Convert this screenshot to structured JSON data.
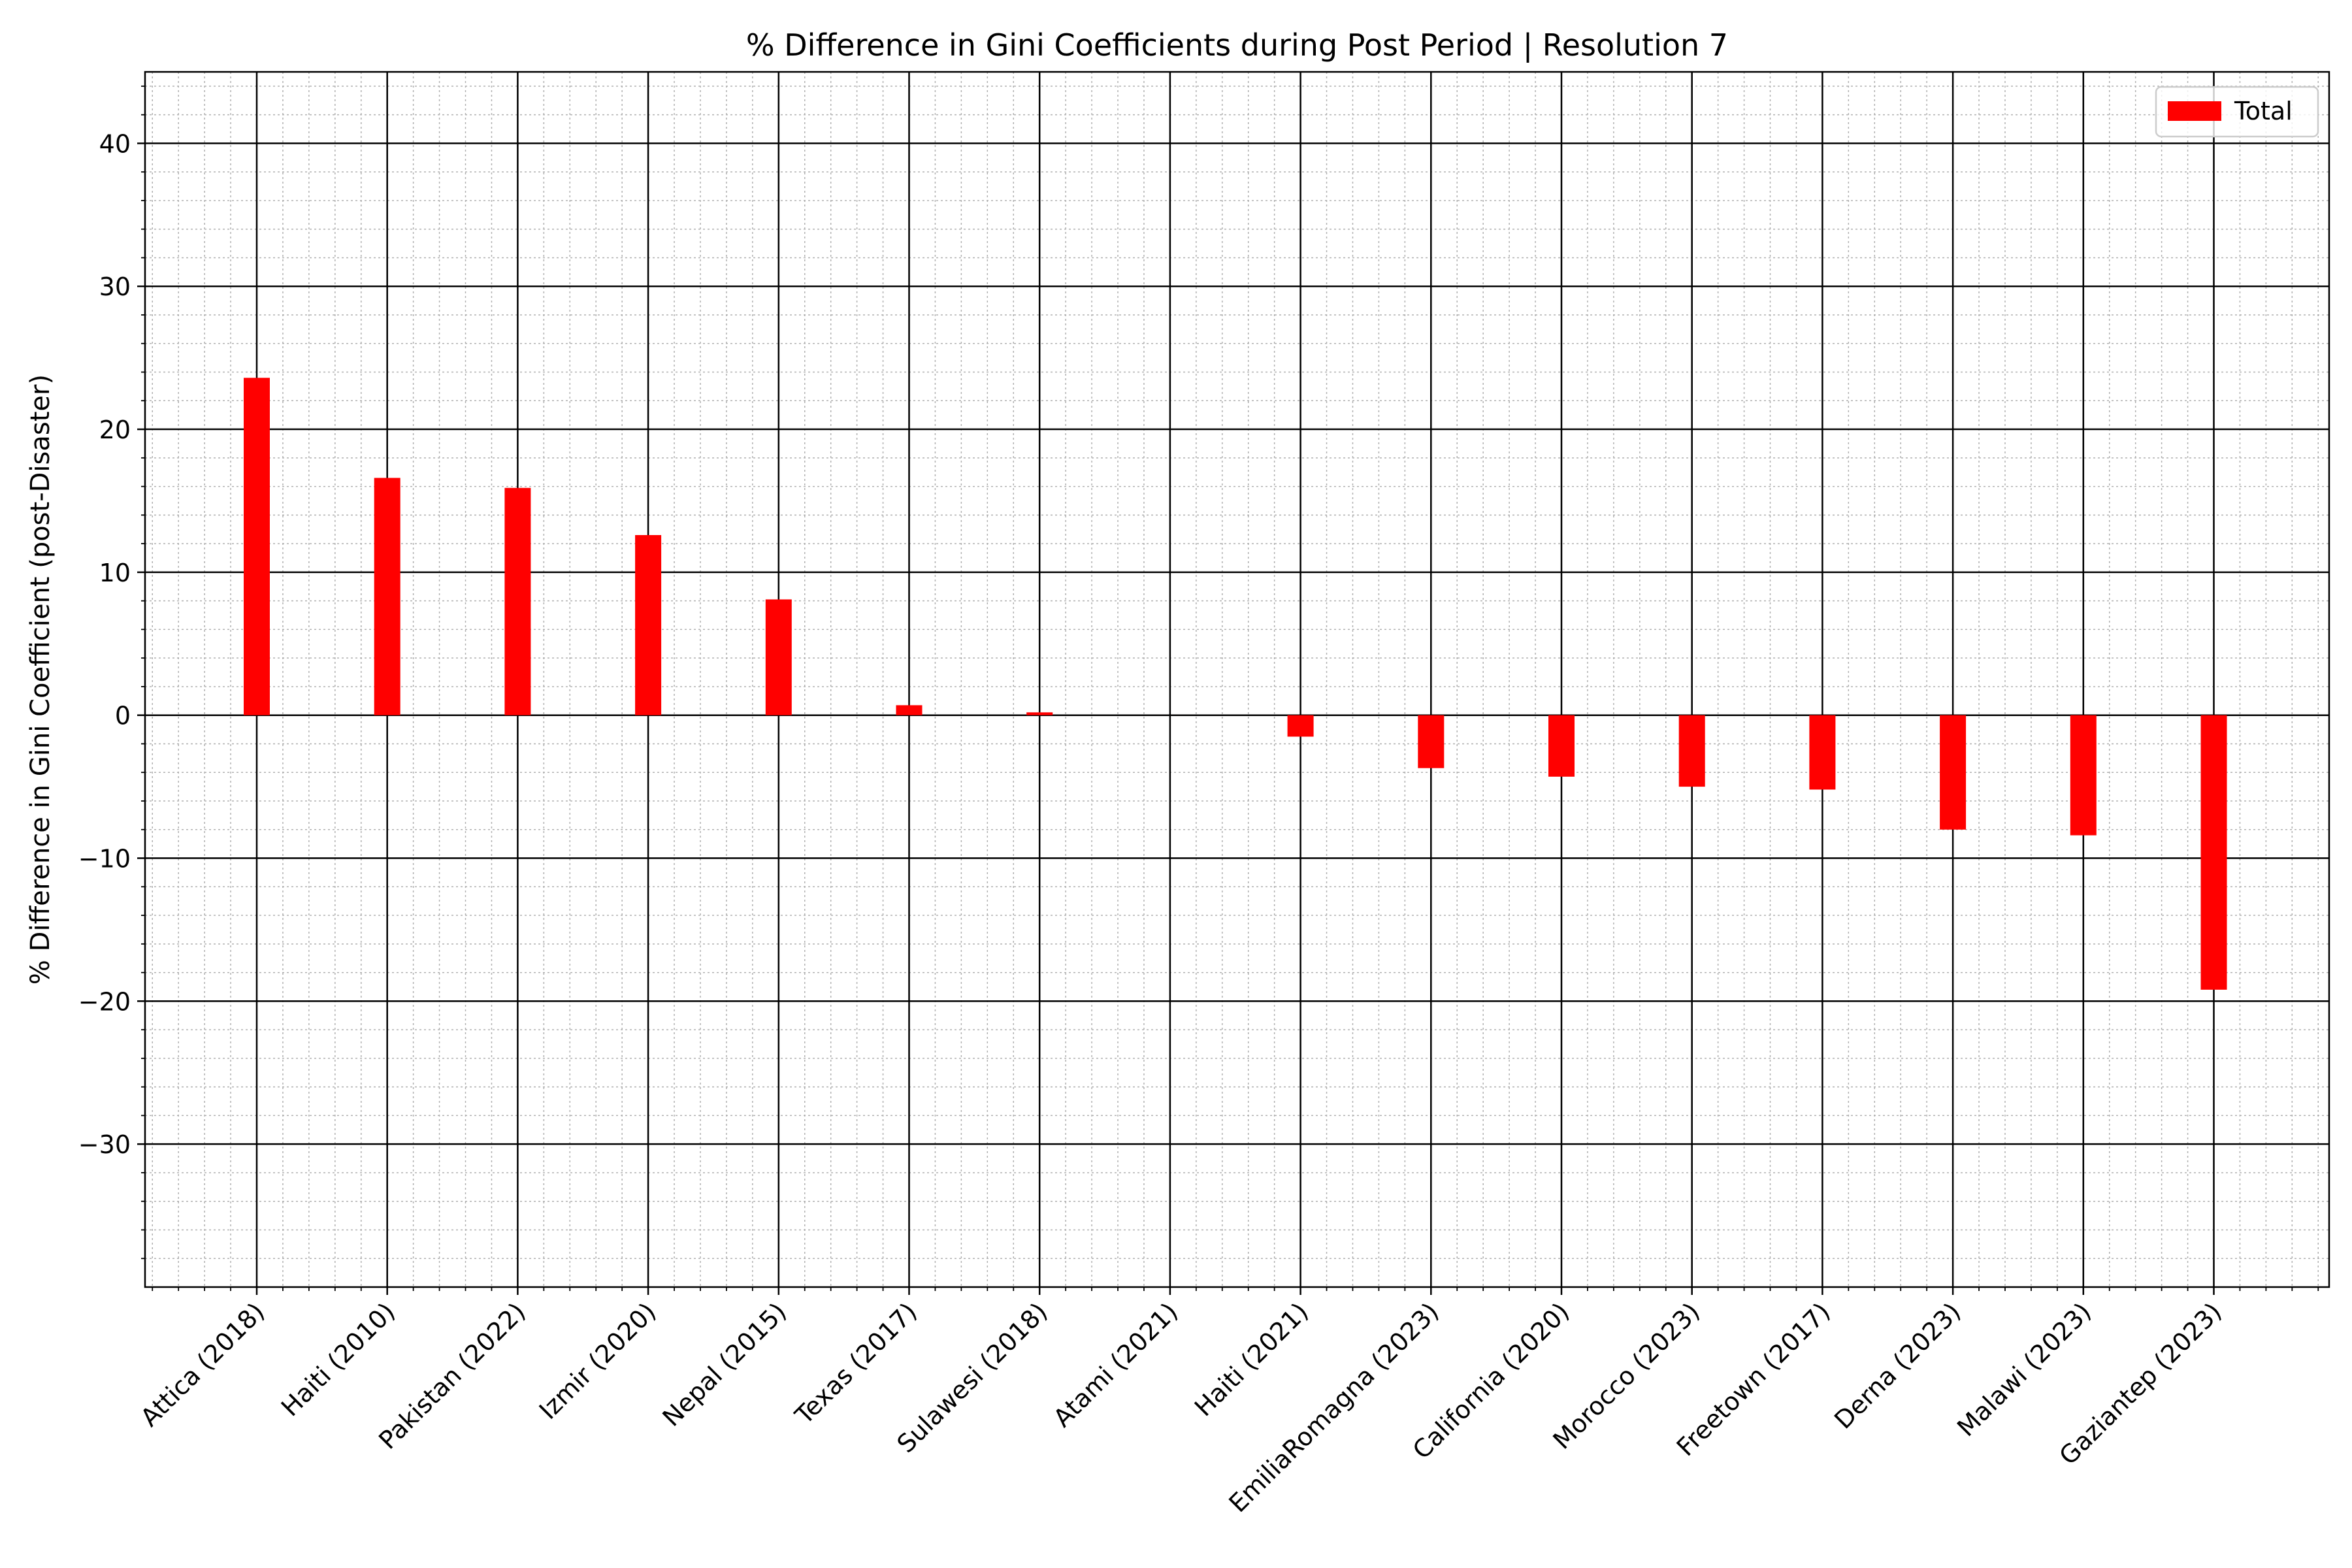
{
  "chart_data": {
    "type": "bar",
    "title": "% Difference in Gini Coefficients during Post Period | Resolution 7",
    "xlabel": "",
    "ylabel": "% Difference in Gini Coefficient (post-Disaster)",
    "ylim": [
      -40,
      45
    ],
    "yticks": [
      -30,
      -20,
      -10,
      0,
      10,
      20,
      30,
      40
    ],
    "categories": [
      "Attica (2018)",
      "Haiti (2010)",
      "Pakistan (2022)",
      "Izmir (2020)",
      "Nepal (2015)",
      "Texas (2017)",
      "Sulawesi (2018)",
      "Atami (2021)",
      "Haiti (2021)",
      "EmiliaRomagna (2023)",
      "California (2020)",
      "Morocco (2023)",
      "Freetown (2017)",
      "Derna (2023)",
      "Malawi (2023)",
      "Gaziantep (2023)"
    ],
    "series": [
      {
        "name": "Total",
        "color": "#ff0000",
        "values": [
          23.6,
          16.6,
          15.9,
          12.6,
          8.1,
          0.7,
          0.2,
          0.0,
          -1.5,
          -3.7,
          -4.3,
          -5.0,
          -5.2,
          -8.0,
          -8.4,
          -19.2
        ]
      }
    ],
    "grid": "major and minor",
    "legend": "top-right"
  }
}
